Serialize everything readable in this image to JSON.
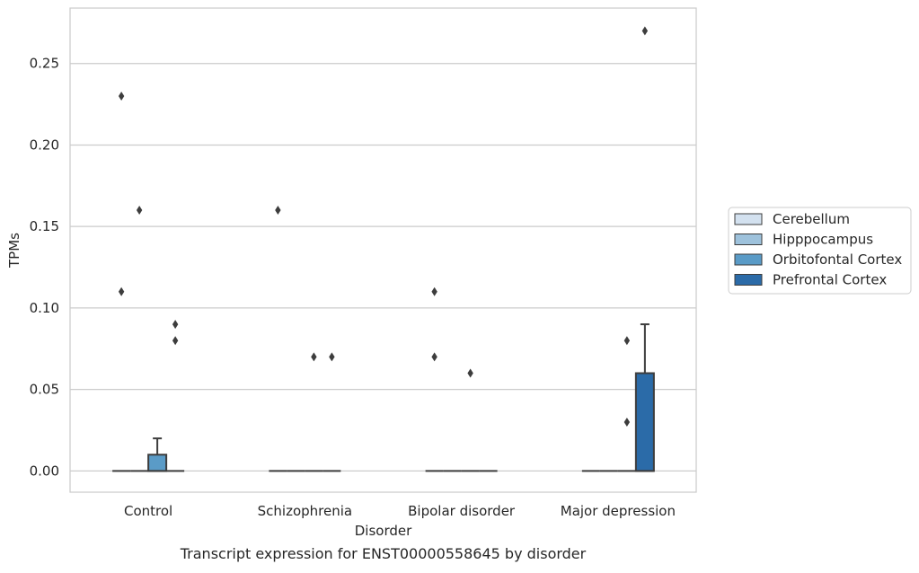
{
  "chart_data": {
    "type": "box",
    "title": "",
    "caption": "Transcript expression for ENST00000558645 by disorder",
    "xlabel": "Disorder",
    "ylabel": "TPMs",
    "ylim": [
      -0.013,
      0.284
    ],
    "yticks": [
      0.0,
      0.05,
      0.1,
      0.15,
      0.2,
      0.25
    ],
    "ytick_labels": [
      "0.00",
      "0.05",
      "0.10",
      "0.15",
      "0.20",
      "0.25"
    ],
    "grid": "horizontal",
    "legend_position": "right",
    "categories": [
      "Control",
      "Schizophrenia",
      "Bipolar disorder",
      "Major depression"
    ],
    "series": [
      {
        "name": "Cerebellum",
        "color": "#d3e1ef",
        "boxes": [
          {
            "q1": 0,
            "median": 0,
            "q3": 0,
            "whisker_low": 0,
            "whisker_high": 0,
            "outliers": [
              0.23,
              0.11
            ]
          },
          {
            "q1": 0,
            "median": 0,
            "q3": 0,
            "whisker_low": 0,
            "whisker_high": 0,
            "outliers": [
              0.16
            ]
          },
          {
            "q1": 0,
            "median": 0,
            "q3": 0,
            "whisker_low": 0,
            "whisker_high": 0,
            "outliers": [
              0.11,
              0.07
            ]
          },
          {
            "q1": 0,
            "median": 0,
            "q3": 0,
            "whisker_low": 0,
            "whisker_high": 0,
            "outliers": []
          }
        ]
      },
      {
        "name": "Hipppocampus",
        "color": "#9ec2dc",
        "boxes": [
          {
            "q1": 0,
            "median": 0,
            "q3": 0,
            "whisker_low": 0,
            "whisker_high": 0,
            "outliers": [
              0.16
            ]
          },
          {
            "q1": 0,
            "median": 0,
            "q3": 0,
            "whisker_low": 0,
            "whisker_high": 0,
            "outliers": []
          },
          {
            "q1": 0,
            "median": 0,
            "q3": 0,
            "whisker_low": 0,
            "whisker_high": 0,
            "outliers": []
          },
          {
            "q1": 0,
            "median": 0,
            "q3": 0,
            "whisker_low": 0,
            "whisker_high": 0,
            "outliers": []
          }
        ]
      },
      {
        "name": "Orbitofontal Cortex",
        "color": "#5a9bc7",
        "boxes": [
          {
            "q1": 0,
            "median": 0,
            "q3": 0.01,
            "whisker_low": 0,
            "whisker_high": 0.02,
            "outliers": []
          },
          {
            "q1": 0,
            "median": 0,
            "q3": 0,
            "whisker_low": 0,
            "whisker_high": 0,
            "outliers": [
              0.07
            ]
          },
          {
            "q1": 0,
            "median": 0,
            "q3": 0,
            "whisker_low": 0,
            "whisker_high": 0,
            "outliers": [
              0.06
            ]
          },
          {
            "q1": 0,
            "median": 0,
            "q3": 0,
            "whisker_low": 0,
            "whisker_high": 0,
            "outliers": [
              0.08,
              0.03
            ]
          }
        ]
      },
      {
        "name": "Prefrontal Cortex",
        "color": "#2b6ba8",
        "boxes": [
          {
            "q1": 0,
            "median": 0,
            "q3": 0,
            "whisker_low": 0,
            "whisker_high": 0,
            "outliers": [
              0.09,
              0.08
            ]
          },
          {
            "q1": 0,
            "median": 0,
            "q3": 0,
            "whisker_low": 0,
            "whisker_high": 0,
            "outliers": [
              0.07
            ]
          },
          {
            "q1": 0,
            "median": 0,
            "q3": 0,
            "whisker_low": 0,
            "whisker_high": 0,
            "outliers": []
          },
          {
            "q1": 0,
            "median": 0,
            "q3": 0.06,
            "whisker_low": 0,
            "whisker_high": 0.09,
            "outliers": [
              0.27
            ]
          }
        ]
      }
    ]
  }
}
